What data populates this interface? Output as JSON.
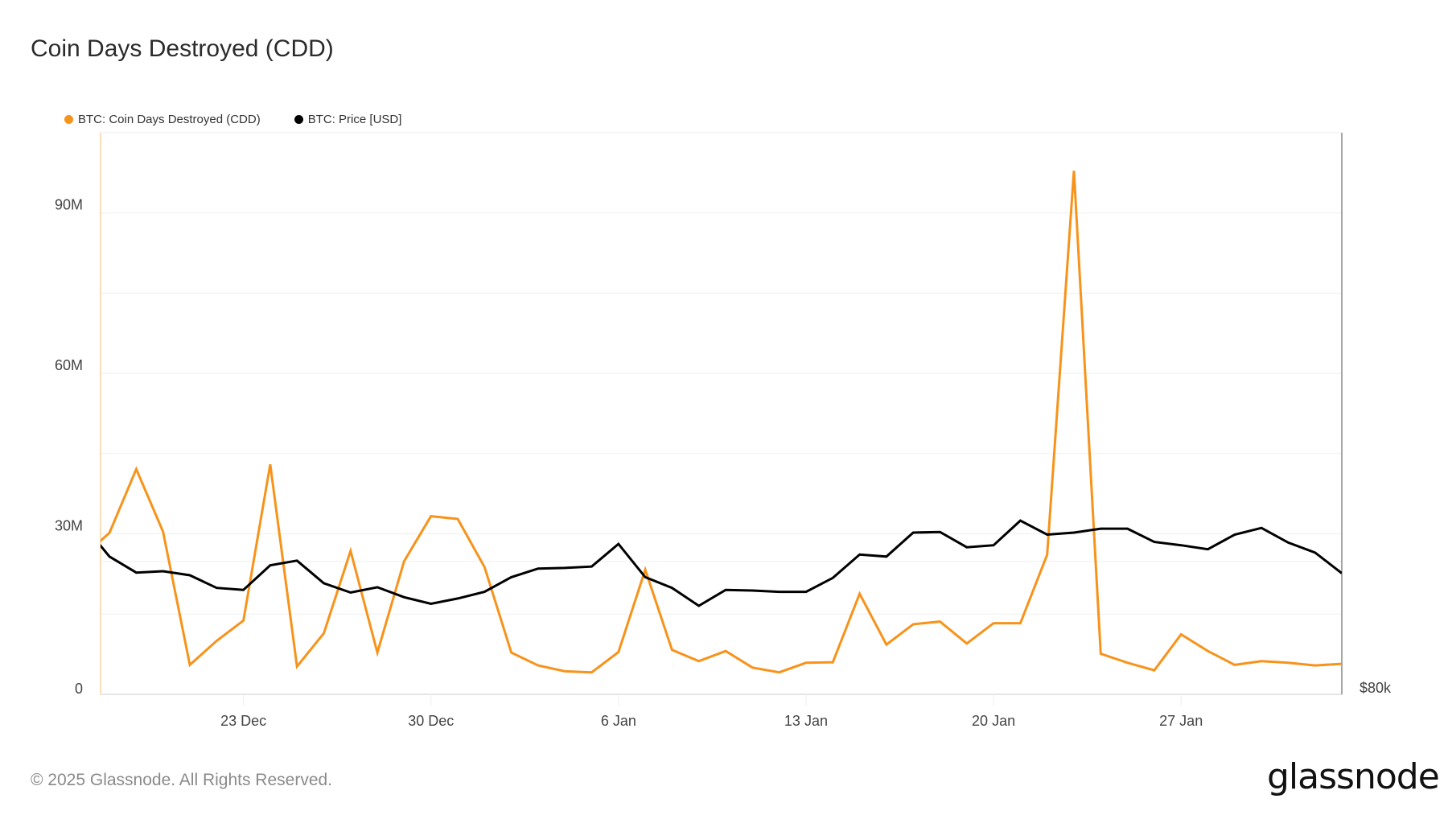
{
  "title": "Coin Days Destroyed (CDD)",
  "footer": "© 2025 Glassnode. All Rights Reserved.",
  "logo": "glassnode",
  "chart_data": {
    "type": "line",
    "title": "Coin Days Destroyed (CDD)",
    "legend_position": "top-left",
    "grid": true,
    "xlim": [
      "2024-12-17T16:00",
      "2025-02-02"
    ],
    "x_ticks": [
      {
        "date": "2024-12-23",
        "label": "23 Dec"
      },
      {
        "date": "2024-12-30",
        "label": "30 Dec"
      },
      {
        "date": "2025-01-06",
        "label": "6 Jan"
      },
      {
        "date": "2025-01-13",
        "label": "13 Jan"
      },
      {
        "date": "2025-01-20",
        "label": "20 Jan"
      },
      {
        "date": "2025-01-27",
        "label": "27 Jan"
      }
    ],
    "y_left": {
      "lim": [
        0,
        105000000
      ],
      "ticks": [
        {
          "value": 0,
          "label": "0"
        },
        {
          "value": 30000000,
          "label": "30M"
        },
        {
          "value": 60000000,
          "label": "60M"
        },
        {
          "value": 90000000,
          "label": "90M"
        }
      ],
      "grid_step": 15000000
    },
    "y_right": {
      "lim": [
        80000,
        164400
      ],
      "ticks": [
        {
          "value": 80000,
          "label": "$80k"
        }
      ],
      "grid": [
        100000
      ]
    },
    "x": [
      "2024-12-17",
      "2024-12-18",
      "2024-12-19",
      "2024-12-20",
      "2024-12-21",
      "2024-12-22",
      "2024-12-23",
      "2024-12-24",
      "2024-12-25",
      "2024-12-26",
      "2024-12-27",
      "2024-12-28",
      "2024-12-29",
      "2024-12-30",
      "2024-12-31",
      "2025-01-01",
      "2025-01-02",
      "2025-01-03",
      "2025-01-04",
      "2025-01-05",
      "2025-01-06",
      "2025-01-07",
      "2025-01-08",
      "2025-01-09",
      "2025-01-10",
      "2025-01-11",
      "2025-01-12",
      "2025-01-13",
      "2025-01-14",
      "2025-01-15",
      "2025-01-16",
      "2025-01-17",
      "2025-01-18",
      "2025-01-19",
      "2025-01-20",
      "2025-01-21",
      "2025-01-22",
      "2025-01-23",
      "2025-01-24",
      "2025-01-25",
      "2025-01-26",
      "2025-01-27",
      "2025-01-28",
      "2025-01-29",
      "2025-01-30",
      "2025-01-31",
      "2025-02-01",
      "2025-02-02"
    ],
    "series": [
      {
        "name": "BTC: Coin Days Destroyed (CDD)",
        "axis": "left",
        "color": "#f7931a",
        "values": [
          25700000.0,
          30200000.0,
          42100000.0,
          30400000.0,
          5500000.0,
          10000000.0,
          13800000.0,
          43000000.0,
          5200000.0,
          11400000.0,
          26800000.0,
          7800000.0,
          24900000.0,
          33300000.0,
          32800000.0,
          23800000.0,
          7800000.0,
          5400000.0,
          4300000.0,
          4100000.0,
          7900000.0,
          23300000.0,
          8300000.0,
          6200000.0,
          8100000.0,
          5000000.0,
          4100000.0,
          5900000.0,
          6000000.0,
          18800000.0,
          9300000.0,
          13100000.0,
          13600000.0,
          9500000.0,
          13300000.0,
          13300000.0,
          26100000.0,
          97900000.0,
          7600000.0,
          5900000.0,
          4500000.0,
          11200000.0,
          8100000.0,
          5500000.0,
          6200000.0,
          5900000.0,
          5400000.0,
          5700000.0
        ]
      },
      {
        "name": "BTC: Price [USD]",
        "axis": "right",
        "color": "#000000",
        "values": [
          105600,
          100700,
          98300,
          98500,
          97900,
          96000,
          95700,
          99400,
          100100,
          96700,
          95300,
          96100,
          94600,
          93600,
          94400,
          95400,
          97600,
          98900,
          99000,
          99200,
          102600,
          97600,
          96000,
          93300,
          95700,
          95600,
          95400,
          95400,
          97500,
          101000,
          100700,
          104300,
          104400,
          102100,
          102400,
          106100,
          104000,
          104300,
          104900,
          104900,
          102900,
          102400,
          101800,
          104000,
          105000,
          102800,
          101300,
          98200
        ]
      }
    ]
  }
}
